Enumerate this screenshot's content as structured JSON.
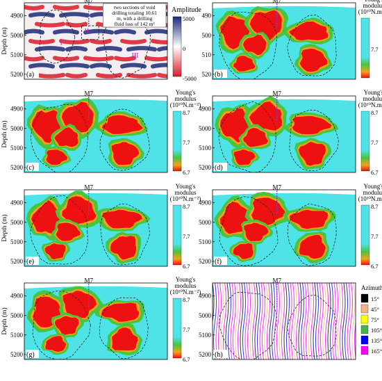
{
  "panels": [
    {
      "letter": "(a)",
      "type": "amplitude",
      "well": "M7",
      "ylabel": "Depth (m)",
      "depth_ticks": [
        "4900",
        "5000",
        "5100",
        "5200"
      ],
      "annotation": [
        "two sections of void",
        "drilling totaling 10.61",
        "m, with a drilling",
        "fluid loss of 142 m³"
      ],
      "zone_labels": [
        "I",
        "II",
        "III"
      ],
      "legend_title": "Amplitude",
      "legend_ticks": [
        "5000",
        "0",
        "-5000"
      ]
    },
    {
      "letter": "(b)",
      "type": "young",
      "well": "M7",
      "depth_ticks": [
        "490",
        "500",
        "510",
        "520"
      ],
      "legend_title": [
        "Young's",
        "modulus",
        "(10¹⁰N.m⁻²)"
      ],
      "legend_ticks": [
        "",
        "7.7",
        ""
      ]
    },
    {
      "letter": "(c)",
      "type": "young",
      "well": "M7",
      "ylabel": "Depth (m)",
      "depth_ticks": [
        "4900",
        "5000",
        "5100",
        "5200"
      ],
      "legend_title": [
        "Young's",
        "modulus",
        "(10¹⁰N.m⁻²)"
      ],
      "legend_ticks": [
        "8.7",
        "7.7",
        "6.7"
      ]
    },
    {
      "letter": "(d)",
      "type": "young",
      "well": "M7",
      "depth_ticks": [
        "4900",
        "5000",
        "5100",
        "5200"
      ],
      "legend_title": [
        "Young's",
        "modulus",
        "(10¹⁰N.m⁻²)"
      ],
      "legend_ticks": [
        "8.7",
        "7.7",
        "6.7"
      ]
    },
    {
      "letter": "(e)",
      "type": "young",
      "well": "M7",
      "ylabel": "Depth (m)",
      "depth_ticks": [
        "4900",
        "5000",
        "5100",
        "5200"
      ],
      "legend_title": [
        "Young's",
        "modulus",
        "(10¹⁰N.m⁻²)"
      ],
      "legend_ticks": [
        "8.7",
        "7.7",
        "6.7"
      ]
    },
    {
      "letter": "(f)",
      "type": "young",
      "well": "M7",
      "depth_ticks": [
        "4900",
        "5000",
        "5100",
        "5200"
      ],
      "legend_title": [
        "Young's",
        "modulus",
        "(10¹⁰N.m⁻²)"
      ],
      "legend_ticks": [
        "8.7",
        "7.7",
        "6.7"
      ]
    },
    {
      "letter": "(g)",
      "type": "young",
      "well": "M7",
      "ylabel": "Depth (m)",
      "depth_ticks": [
        "4900",
        "5000",
        "5100",
        "5200"
      ],
      "legend_title": [
        "Young's",
        "modulus",
        "(10¹⁰N.m⁻²)"
      ],
      "legend_ticks": [
        "8.7",
        "7.7",
        "6.7"
      ]
    },
    {
      "letter": "(h)",
      "type": "azimuth",
      "well": "M7",
      "depth_ticks": [
        "4900",
        "5000",
        "5100",
        "5200"
      ],
      "legend_title": "Azimuth",
      "legend_entries": [
        {
          "label": "15°",
          "color": "#000000"
        },
        {
          "label": "45°",
          "color": "#f4b183"
        },
        {
          "label": "75°",
          "color": "#ffff00"
        },
        {
          "label": "105°",
          "color": "#4caf50"
        },
        {
          "label": "135°",
          "color": "#0000ff"
        },
        {
          "label": "165°",
          "color": "#ff00ff"
        }
      ]
    }
  ],
  "colors": {
    "background": "#4fe3e8",
    "green": "#49c43f",
    "red": "#ee1111",
    "orange": "#f5a21a",
    "dashed": "#222222",
    "seis_red": "#d81b2a",
    "seis_blue": "#1b2a78",
    "well_line": "#7040ff"
  }
}
